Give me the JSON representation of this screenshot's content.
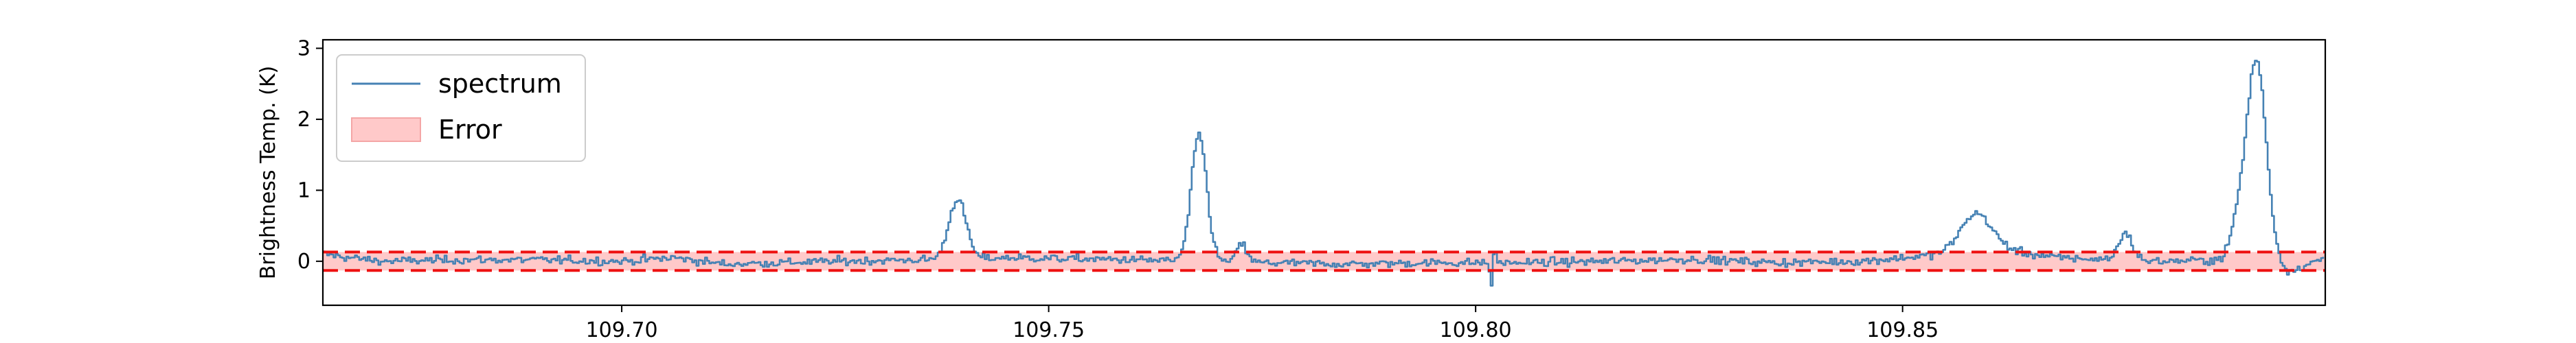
{
  "chart_data": {
    "type": "line",
    "title": "",
    "xlabel": "",
    "ylabel": "Brightness Temp. (K)",
    "xlim": [
      109.665,
      109.8995
    ],
    "ylim": [
      -0.62,
      3.12
    ],
    "xticks": [
      109.7,
      109.75,
      109.8,
      109.85
    ],
    "xtick_labels": [
      "109.70",
      "109.75",
      "109.80",
      "109.85"
    ],
    "yticks": [
      0,
      1,
      2,
      3
    ],
    "ytick_labels": [
      "0",
      "1",
      "2",
      "3"
    ],
    "grid": false,
    "legend": {
      "position": "top-left",
      "entries": [
        {
          "label": "spectrum",
          "kind": "line",
          "color": "#4682b4"
        },
        {
          "label": "Error",
          "kind": "patch",
          "color": "#ffc9c9"
        }
      ]
    },
    "error_band": {
      "lower": -0.13,
      "upper": 0.13,
      "fill": "#ffc9c9",
      "line_color": "#ee1111",
      "line_style": "dashed"
    },
    "series": [
      {
        "name": "spectrum",
        "color": "#4682b4",
        "x_start": 109.665,
        "x_step": 0.00025,
        "noise_rms": 0.05,
        "baseline_points": [
          [
            109.665,
            0.1
          ],
          [
            109.668,
            0.05
          ],
          [
            109.672,
            0.0
          ],
          [
            109.68,
            0.02
          ],
          [
            109.69,
            0.02
          ],
          [
            109.7,
            0.0
          ],
          [
            109.706,
            0.05
          ],
          [
            109.712,
            -0.04
          ],
          [
            109.725,
            0.0
          ],
          [
            109.735,
            0.02
          ],
          [
            109.745,
            0.05
          ],
          [
            109.76,
            0.02
          ],
          [
            109.775,
            -0.02
          ],
          [
            109.785,
            -0.04
          ],
          [
            109.795,
            -0.02
          ],
          [
            109.805,
            -0.02
          ],
          [
            109.815,
            0.0
          ],
          [
            109.825,
            0.03
          ],
          [
            109.835,
            -0.02
          ],
          [
            109.845,
            0.0
          ],
          [
            109.855,
            0.1
          ],
          [
            109.862,
            0.15
          ],
          [
            109.868,
            0.05
          ],
          [
            109.88,
            0.0
          ],
          [
            109.888,
            0.02
          ],
          [
            109.895,
            -0.15
          ],
          [
            109.8995,
            0.05
          ]
        ],
        "peaks": [
          {
            "center": 109.7392,
            "height": 0.85,
            "width": 0.001
          },
          {
            "center": 109.7675,
            "height": 1.78,
            "width": 0.0009
          },
          {
            "center": 109.7725,
            "height": 0.25,
            "width": 0.0006
          },
          {
            "center": 109.802,
            "height": 0.35,
            "width": 0.0002
          },
          {
            "center": 109.8018,
            "height": -0.45,
            "width": 0.0002
          },
          {
            "center": 109.8585,
            "height": 0.55,
            "width": 0.0018
          },
          {
            "center": 109.876,
            "height": 0.38,
            "width": 0.0008
          },
          {
            "center": 109.8913,
            "height": 2.9,
            "width": 0.0012
          },
          {
            "center": 109.889,
            "height": 0.35,
            "width": 0.0008
          }
        ]
      }
    ]
  }
}
